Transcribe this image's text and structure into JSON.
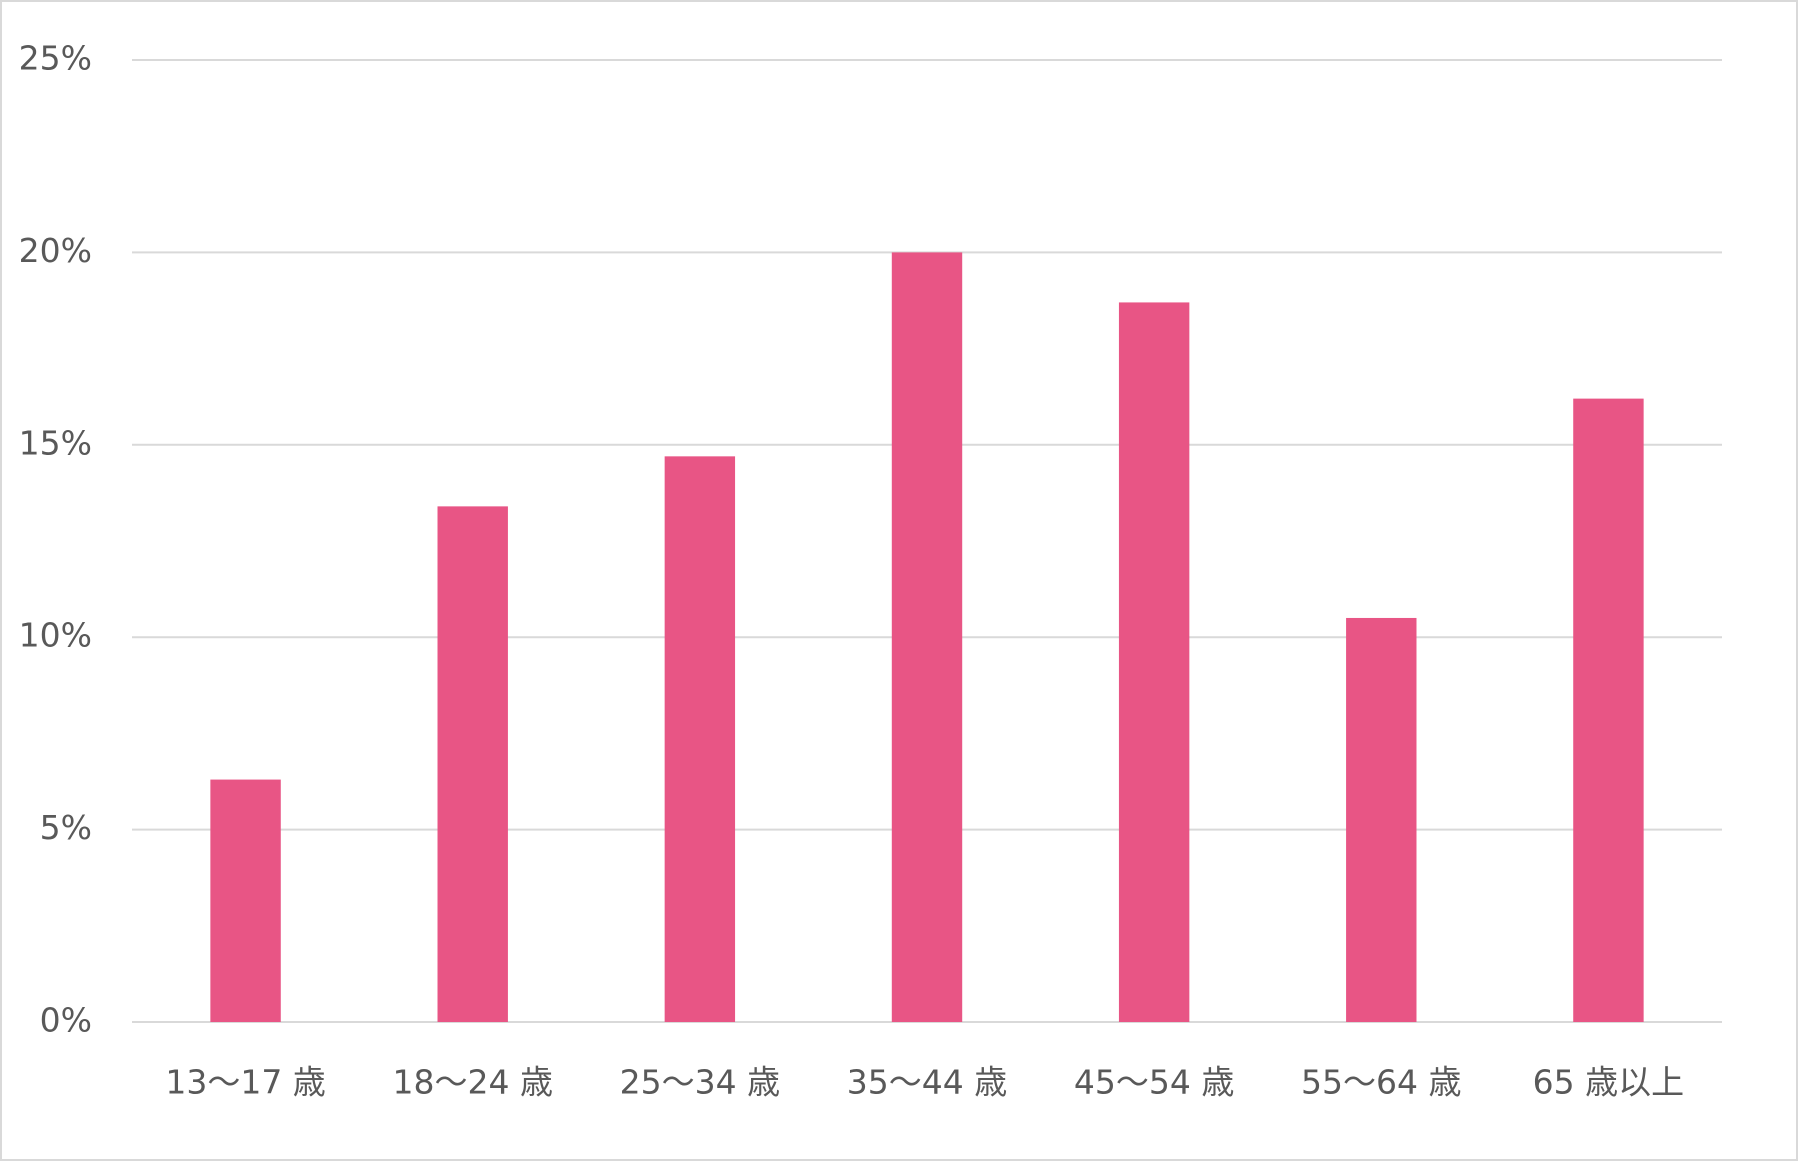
{
  "chart_data": {
    "type": "bar",
    "categories": [
      "13～17 歳",
      "18～24 歳",
      "25～34 歳",
      "35～44 歳",
      "45～54 歳",
      "55～64 歳",
      "65 歳以上"
    ],
    "values": [
      6.3,
      13.4,
      14.7,
      20.0,
      18.7,
      10.5,
      16.2
    ],
    "color": "#e85585",
    "ylim": [
      0,
      25
    ],
    "yticks": [
      {
        "value": 0,
        "label": "0%"
      },
      {
        "value": 5,
        "label": "5%"
      },
      {
        "value": 10,
        "label": "10%"
      },
      {
        "value": 15,
        "label": "15%"
      },
      {
        "value": 20,
        "label": "20%"
      },
      {
        "value": 25,
        "label": "25%"
      }
    ],
    "grid": true
  }
}
